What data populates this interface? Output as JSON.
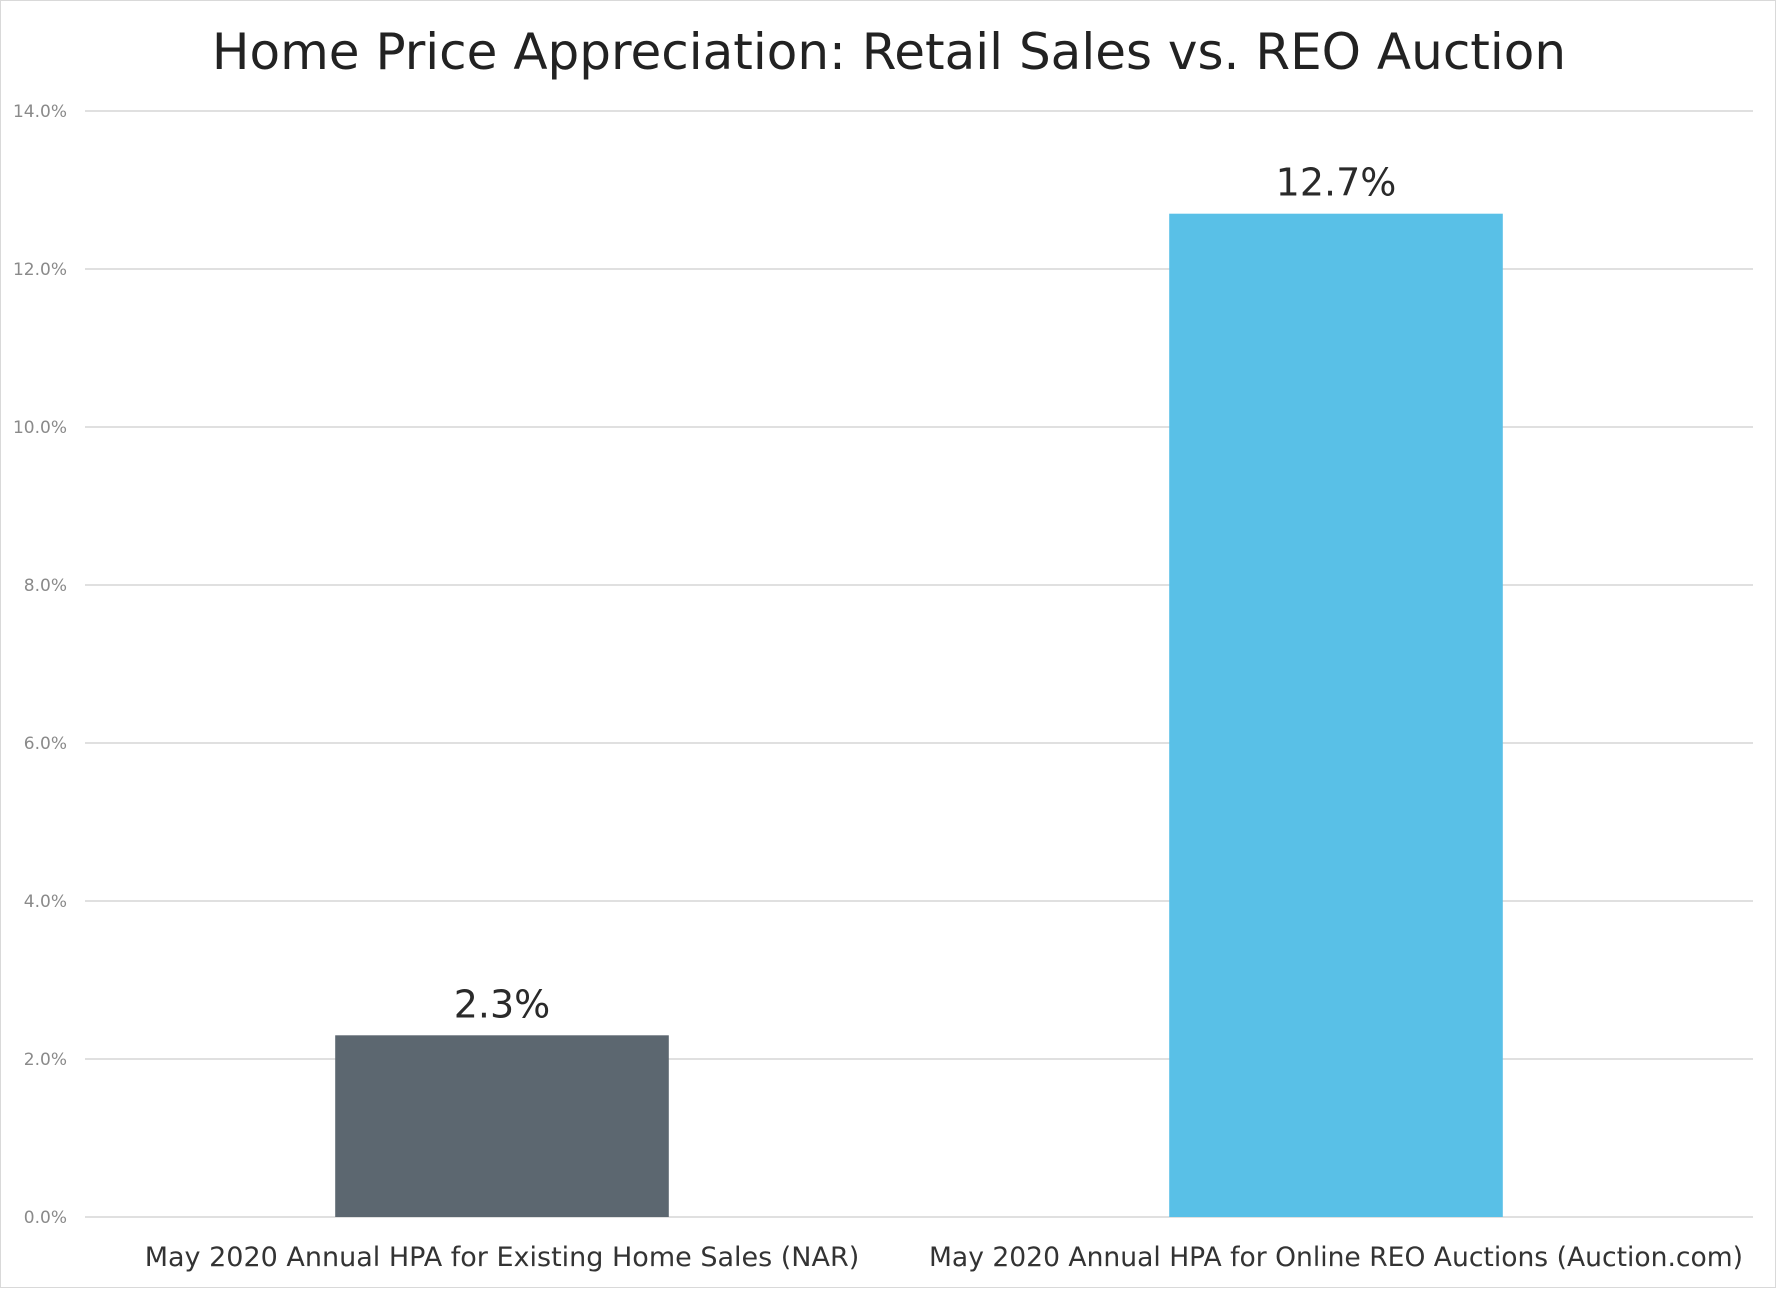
{
  "chart_data": {
    "type": "bar",
    "title": "Home Price Appreciation: Retail Sales vs. REO Auction",
    "xlabel": "",
    "ylabel": "",
    "categories": [
      "May 2020 Annual HPA for Existing Home Sales (NAR)",
      "May 2020 Annual HPA for Online REO Auctions (Auction.com)"
    ],
    "values": [
      2.3,
      12.7
    ],
    "value_labels": [
      "2.3%",
      "12.7%"
    ],
    "bar_colors": [
      "#5c6770",
      "#59c0e7"
    ],
    "ylim": [
      0,
      14
    ],
    "yticks": [
      0,
      2,
      4,
      6,
      8,
      10,
      12,
      14
    ],
    "ytick_labels": [
      "0.0%",
      "2.0%",
      "4.0%",
      "6.0%",
      "8.0%",
      "10.0%",
      "12.0%",
      "14.0%"
    ],
    "grid": true,
    "legend": "none"
  }
}
